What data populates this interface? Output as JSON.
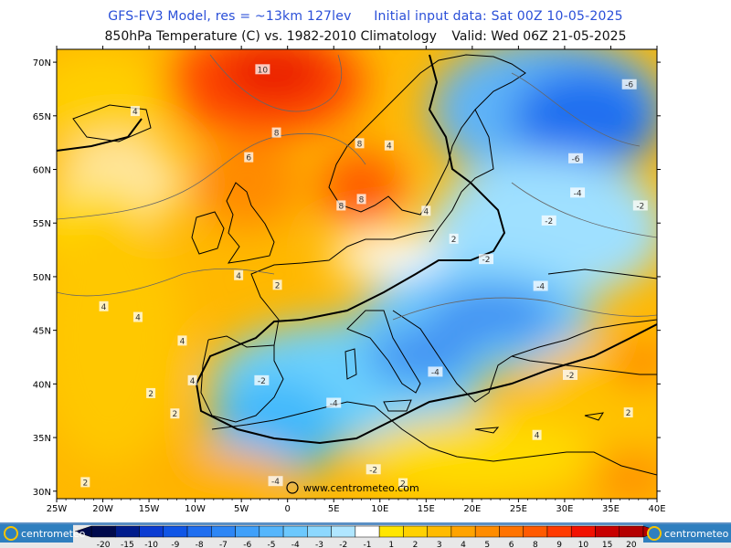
{
  "header": {
    "model": "GFS-FV3 Model, res = ~13km 127lev",
    "init": "Initial input data: Sat 00Z 10-05-2025",
    "product": "850hPa Temperature (C) vs. 1982-2010 Climatology",
    "valid": "Valid: Wed 06Z 21-05-2025"
  },
  "map": {
    "lat_labels": [
      "70N",
      "65N",
      "60N",
      "55N",
      "50N",
      "45N",
      "40N",
      "35N",
      "30N"
    ],
    "lon_labels": [
      "25W",
      "20W",
      "15W",
      "10W",
      "5W",
      "0",
      "5E",
      "10E",
      "15E",
      "20E",
      "25E",
      "30E",
      "35E",
      "40E"
    ],
    "watermark": "www.centrometeo.com",
    "contour_labels": [
      {
        "t": "10",
        "lon": -2.7,
        "lat": 69.3
      },
      {
        "t": "8",
        "lon": -1.2,
        "lat": 63.4
      },
      {
        "t": "8",
        "lon": 7.8,
        "lat": 62.4
      },
      {
        "t": "8",
        "lon": 8,
        "lat": 57.2
      },
      {
        "t": "8",
        "lon": 5.8,
        "lat": 56.6
      },
      {
        "t": "6",
        "lon": -4.2,
        "lat": 61.1
      },
      {
        "t": "4",
        "lon": -16.5,
        "lat": 65.4
      },
      {
        "t": "4",
        "lon": 11,
        "lat": 62.2
      },
      {
        "t": "4",
        "lon": 15,
        "lat": 56.1
      },
      {
        "t": "4",
        "lon": -5.3,
        "lat": 50.1
      },
      {
        "t": "4",
        "lon": -19.9,
        "lat": 47.2
      },
      {
        "t": "4",
        "lon": -16.2,
        "lat": 46.2
      },
      {
        "t": "4",
        "lon": -11.4,
        "lat": 44.0
      },
      {
        "t": "4",
        "lon": -10.3,
        "lat": 40.3
      },
      {
        "t": "4",
        "lon": 27,
        "lat": 35.2
      },
      {
        "t": "2",
        "lon": -1.1,
        "lat": 49.2
      },
      {
        "t": "2",
        "lon": 18,
        "lat": 53.5
      },
      {
        "t": "2",
        "lon": -14.8,
        "lat": 39.1
      },
      {
        "t": "2",
        "lon": -12.2,
        "lat": 37.2
      },
      {
        "t": "2",
        "lon": -21.9,
        "lat": 30.8
      },
      {
        "t": "2",
        "lon": 36.9,
        "lat": 37.3
      },
      {
        "t": "2",
        "lon": 12.5,
        "lat": 30.7
      },
      {
        "t": "-2",
        "lon": 21.5,
        "lat": 51.6
      },
      {
        "t": "-2",
        "lon": -2.8,
        "lat": 40.3
      },
      {
        "t": "-2",
        "lon": 9.3,
        "lat": 32.0
      },
      {
        "t": "-2",
        "lon": 28.3,
        "lat": 55.2
      },
      {
        "t": "-2",
        "lon": 38.2,
        "lat": 56.6
      },
      {
        "t": "-2",
        "lon": 30.6,
        "lat": 40.8
      },
      {
        "t": "-4",
        "lon": 31.4,
        "lat": 57.8
      },
      {
        "t": "-4",
        "lon": 27.4,
        "lat": 49.1
      },
      {
        "t": "-4",
        "lon": 5,
        "lat": 38.2
      },
      {
        "t": "-4",
        "lon": 16,
        "lat": 41.1
      },
      {
        "t": "-4",
        "lon": -1.3,
        "lat": 30.9
      },
      {
        "t": "-6",
        "lon": 37,
        "lat": 67.9
      },
      {
        "t": "-6",
        "lon": 31.2,
        "lat": 61.0
      }
    ]
  },
  "legend": {
    "values": [
      "-20",
      "-15",
      "-10",
      "-9",
      "-8",
      "-7",
      "-6",
      "-5",
      "-4",
      "-3",
      "-2",
      "-1",
      "1",
      "2",
      "3",
      "4",
      "5",
      "6",
      "8",
      "9",
      "10",
      "15",
      "20"
    ],
    "colors": [
      "#000a4c",
      "#001c8c",
      "#0a3cd2",
      "#0f55e6",
      "#1e6ef0",
      "#2d86f5",
      "#3fa0fa",
      "#55b6fc",
      "#6cc8fd",
      "#8dd8fe",
      "#b0e6ff",
      "#ffffff",
      "#ffe600",
      "#ffd100",
      "#ffbb00",
      "#ffa300",
      "#ff8c00",
      "#ff7300",
      "#ff5a00",
      "#ff3a00",
      "#f21100",
      "#c80000",
      "#b40000"
    ],
    "brand": "centrometeo"
  }
}
